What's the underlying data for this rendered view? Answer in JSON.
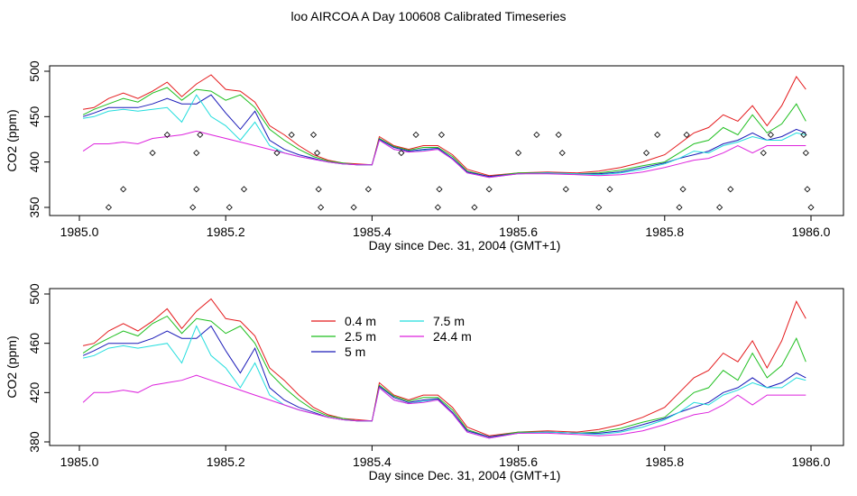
{
  "title": "loo AIRCOA A  Day 100608  Calibrated Timeseries",
  "chart_data": [
    {
      "type": "line",
      "xlabel": "Day since Dec. 31, 2004 (GMT+1)",
      "ylabel": "CO2 (ppm)",
      "xlim": [
        1985.0,
        1986.0
      ],
      "ylim": [
        345,
        500
      ],
      "xticks": [
        "1985.0",
        "1985.2",
        "1985.4",
        "1985.6",
        "1985.8",
        "1986.0"
      ],
      "yticks": [
        "350",
        "400",
        "450",
        "500"
      ],
      "legend": null,
      "scatter_points": {
        "x": [
          1985.04,
          1985.06,
          1985.1,
          1985.12,
          1985.155,
          1985.16,
          1985.16,
          1985.165,
          1985.205,
          1985.225,
          1985.27,
          1985.29,
          1985.32,
          1985.325,
          1985.327,
          1985.33,
          1985.375,
          1985.395,
          1985.44,
          1985.46,
          1985.49,
          1985.492,
          1985.495,
          1985.54,
          1985.56,
          1985.6,
          1985.625,
          1985.655,
          1985.66,
          1985.665,
          1985.71,
          1985.725,
          1985.775,
          1985.79,
          1985.82,
          1985.825,
          1985.83,
          1985.875,
          1985.89,
          1985.935,
          1985.945,
          1985.99,
          1985.993,
          1985.995,
          1986.0
        ],
        "y": [
          350,
          370,
          410,
          430,
          350,
          370,
          410,
          430,
          350,
          370,
          410,
          430,
          430,
          410,
          370,
          350,
          350,
          370,
          410,
          430,
          350,
          370,
          430,
          350,
          370,
          410,
          430,
          430,
          410,
          370,
          350,
          370,
          410,
          430,
          350,
          370,
          430,
          350,
          370,
          410,
          430,
          430,
          410,
          370,
          350
        ]
      }
    },
    {
      "type": "line",
      "xlabel": "Day since Dec. 31, 2004 (GMT+1)",
      "ylabel": "CO2 (ppm)",
      "xlim": [
        1985.0,
        1986.0
      ],
      "ylim": [
        380,
        500
      ],
      "xticks": [
        "1985.0",
        "1985.2",
        "1985.4",
        "1985.6",
        "1985.8",
        "1986.0"
      ],
      "yticks": [
        "380",
        "420",
        "460",
        "500"
      ],
      "legend": "top-center"
    }
  ],
  "series": [
    {
      "name": "0.4 m",
      "color": "#e41a1c",
      "points": [
        [
          1985.005,
          458
        ],
        [
          1985.02,
          460
        ],
        [
          1985.04,
          470
        ],
        [
          1985.06,
          476
        ],
        [
          1985.08,
          470
        ],
        [
          1985.1,
          478
        ],
        [
          1985.12,
          488
        ],
        [
          1985.14,
          472
        ],
        [
          1985.16,
          486
        ],
        [
          1985.18,
          496
        ],
        [
          1985.2,
          480
        ],
        [
          1985.22,
          478
        ],
        [
          1985.24,
          466
        ],
        [
          1985.26,
          440
        ],
        [
          1985.28,
          430
        ],
        [
          1985.3,
          418
        ],
        [
          1985.32,
          408
        ],
        [
          1985.34,
          402
        ],
        [
          1985.36,
          399
        ],
        [
          1985.38,
          398
        ],
        [
          1985.4,
          397
        ],
        [
          1985.41,
          428
        ],
        [
          1985.43,
          418
        ],
        [
          1985.45,
          414
        ],
        [
          1985.47,
          418
        ],
        [
          1985.49,
          418
        ],
        [
          1985.51,
          408
        ],
        [
          1985.53,
          392
        ],
        [
          1985.56,
          385
        ],
        [
          1985.6,
          388
        ],
        [
          1985.64,
          389
        ],
        [
          1985.68,
          388
        ],
        [
          1985.71,
          390
        ],
        [
          1985.74,
          394
        ],
        [
          1985.77,
          400
        ],
        [
          1985.8,
          408
        ],
        [
          1985.82,
          420
        ],
        [
          1985.84,
          432
        ],
        [
          1985.86,
          438
        ],
        [
          1985.88,
          452
        ],
        [
          1985.9,
          445
        ],
        [
          1985.92,
          462
        ],
        [
          1985.94,
          440
        ],
        [
          1985.96,
          462
        ],
        [
          1985.98,
          494
        ],
        [
          1985.993,
          480
        ]
      ]
    },
    {
      "name": "2.5 m",
      "color": "#1fbf1f",
      "points": [
        [
          1985.005,
          452
        ],
        [
          1985.02,
          458
        ],
        [
          1985.04,
          464
        ],
        [
          1985.06,
          470
        ],
        [
          1985.08,
          466
        ],
        [
          1985.1,
          476
        ],
        [
          1985.12,
          482
        ],
        [
          1985.14,
          468
        ],
        [
          1985.16,
          480
        ],
        [
          1985.18,
          478
        ],
        [
          1985.2,
          468
        ],
        [
          1985.22,
          474
        ],
        [
          1985.24,
          460
        ],
        [
          1985.26,
          436
        ],
        [
          1985.28,
          424
        ],
        [
          1985.3,
          414
        ],
        [
          1985.32,
          406
        ],
        [
          1985.34,
          401
        ],
        [
          1985.36,
          399
        ],
        [
          1985.38,
          397
        ],
        [
          1985.4,
          397
        ],
        [
          1985.41,
          426
        ],
        [
          1985.43,
          417
        ],
        [
          1985.45,
          413
        ],
        [
          1985.47,
          416
        ],
        [
          1985.49,
          416
        ],
        [
          1985.51,
          406
        ],
        [
          1985.53,
          390
        ],
        [
          1985.56,
          384
        ],
        [
          1985.6,
          388
        ],
        [
          1985.64,
          388
        ],
        [
          1985.68,
          387
        ],
        [
          1985.71,
          388
        ],
        [
          1985.74,
          391
        ],
        [
          1985.77,
          396
        ],
        [
          1985.8,
          400
        ],
        [
          1985.82,
          410
        ],
        [
          1985.84,
          420
        ],
        [
          1985.86,
          424
        ],
        [
          1985.88,
          438
        ],
        [
          1985.9,
          430
        ],
        [
          1985.92,
          452
        ],
        [
          1985.94,
          432
        ],
        [
          1985.96,
          442
        ],
        [
          1985.98,
          464
        ],
        [
          1985.993,
          445
        ]
      ]
    },
    {
      "name": "5 m",
      "color": "#1a1ab8",
      "points": [
        [
          1985.005,
          450
        ],
        [
          1985.02,
          454
        ],
        [
          1985.04,
          460
        ],
        [
          1985.06,
          460
        ],
        [
          1985.08,
          460
        ],
        [
          1985.1,
          464
        ],
        [
          1985.12,
          470
        ],
        [
          1985.14,
          464
        ],
        [
          1985.16,
          464
        ],
        [
          1985.18,
          474
        ],
        [
          1985.2,
          454
        ],
        [
          1985.22,
          436
        ],
        [
          1985.24,
          456
        ],
        [
          1985.26,
          424
        ],
        [
          1985.28,
          414
        ],
        [
          1985.3,
          408
        ],
        [
          1985.32,
          404
        ],
        [
          1985.34,
          400
        ],
        [
          1985.36,
          398
        ],
        [
          1985.38,
          397
        ],
        [
          1985.4,
          397
        ],
        [
          1985.41,
          425
        ],
        [
          1985.43,
          416
        ],
        [
          1985.45,
          412
        ],
        [
          1985.47,
          414
        ],
        [
          1985.49,
          415
        ],
        [
          1985.51,
          404
        ],
        [
          1985.53,
          389
        ],
        [
          1985.56,
          384
        ],
        [
          1985.6,
          387
        ],
        [
          1985.64,
          388
        ],
        [
          1985.68,
          387
        ],
        [
          1985.71,
          387
        ],
        [
          1985.74,
          389
        ],
        [
          1985.77,
          394
        ],
        [
          1985.8,
          399
        ],
        [
          1985.82,
          404
        ],
        [
          1985.84,
          408
        ],
        [
          1985.86,
          412
        ],
        [
          1985.88,
          420
        ],
        [
          1985.9,
          424
        ],
        [
          1985.92,
          432
        ],
        [
          1985.94,
          424
        ],
        [
          1985.96,
          428
        ],
        [
          1985.98,
          436
        ],
        [
          1985.993,
          432
        ]
      ]
    },
    {
      "name": "7.5 m",
      "color": "#22dddd",
      "points": [
        [
          1985.005,
          448
        ],
        [
          1985.02,
          450
        ],
        [
          1985.04,
          456
        ],
        [
          1985.06,
          458
        ],
        [
          1985.08,
          456
        ],
        [
          1985.1,
          458
        ],
        [
          1985.12,
          460
        ],
        [
          1985.14,
          444
        ],
        [
          1985.16,
          474
        ],
        [
          1985.18,
          450
        ],
        [
          1985.2,
          440
        ],
        [
          1985.22,
          424
        ],
        [
          1985.24,
          444
        ],
        [
          1985.26,
          418
        ],
        [
          1985.28,
          410
        ],
        [
          1985.3,
          406
        ],
        [
          1985.32,
          403
        ],
        [
          1985.34,
          400
        ],
        [
          1985.36,
          398
        ],
        [
          1985.38,
          397
        ],
        [
          1985.4,
          397
        ],
        [
          1985.41,
          424
        ],
        [
          1985.43,
          414
        ],
        [
          1985.45,
          411
        ],
        [
          1985.47,
          413
        ],
        [
          1985.49,
          414
        ],
        [
          1985.51,
          403
        ],
        [
          1985.53,
          388
        ],
        [
          1985.56,
          383
        ],
        [
          1985.6,
          387
        ],
        [
          1985.64,
          388
        ],
        [
          1985.68,
          387
        ],
        [
          1985.71,
          386
        ],
        [
          1985.74,
          388
        ],
        [
          1985.77,
          392
        ],
        [
          1985.8,
          398
        ],
        [
          1985.82,
          404
        ],
        [
          1985.84,
          412
        ],
        [
          1985.86,
          410
        ],
        [
          1985.88,
          418
        ],
        [
          1985.9,
          422
        ],
        [
          1985.92,
          428
        ],
        [
          1985.94,
          424
        ],
        [
          1985.96,
          424
        ],
        [
          1985.98,
          432
        ],
        [
          1985.993,
          430
        ]
      ]
    },
    {
      "name": "24.4 m",
      "color": "#dd22dd",
      "points": [
        [
          1985.005,
          412
        ],
        [
          1985.02,
          420
        ],
        [
          1985.04,
          420
        ],
        [
          1985.06,
          422
        ],
        [
          1985.08,
          420
        ],
        [
          1985.1,
          426
        ],
        [
          1985.12,
          428
        ],
        [
          1985.14,
          430
        ],
        [
          1985.16,
          434
        ],
        [
          1985.18,
          430
        ],
        [
          1985.2,
          426
        ],
        [
          1985.22,
          422
        ],
        [
          1985.24,
          418
        ],
        [
          1985.26,
          414
        ],
        [
          1985.28,
          410
        ],
        [
          1985.3,
          406
        ],
        [
          1985.32,
          403
        ],
        [
          1985.34,
          400
        ],
        [
          1985.36,
          398
        ],
        [
          1985.38,
          397
        ],
        [
          1985.4,
          397
        ],
        [
          1985.41,
          424
        ],
        [
          1985.43,
          414
        ],
        [
          1985.45,
          411
        ],
        [
          1985.47,
          412
        ],
        [
          1985.49,
          414
        ],
        [
          1985.51,
          403
        ],
        [
          1985.53,
          388
        ],
        [
          1985.56,
          383
        ],
        [
          1985.6,
          387
        ],
        [
          1985.64,
          387
        ],
        [
          1985.68,
          386
        ],
        [
          1985.71,
          385
        ],
        [
          1985.74,
          386
        ],
        [
          1985.77,
          389
        ],
        [
          1985.8,
          394
        ],
        [
          1985.82,
          398
        ],
        [
          1985.84,
          402
        ],
        [
          1985.86,
          404
        ],
        [
          1985.88,
          410
        ],
        [
          1985.9,
          418
        ],
        [
          1985.92,
          410
        ],
        [
          1985.94,
          418
        ],
        [
          1985.96,
          418
        ],
        [
          1985.98,
          418
        ],
        [
          1985.993,
          418
        ]
      ]
    }
  ]
}
